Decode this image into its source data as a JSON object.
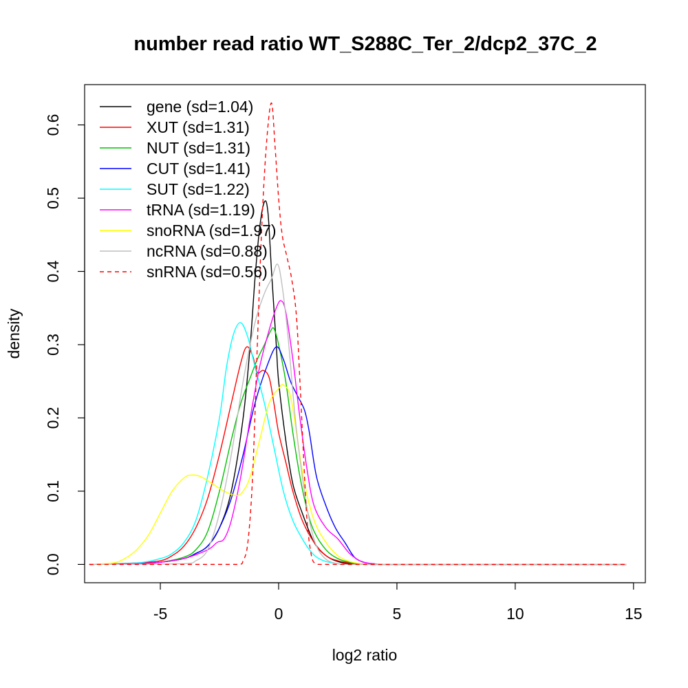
{
  "chart_data": {
    "type": "line",
    "title": "number read ratio WT_S288C_Ter_2/dcp2_37C_2",
    "xlabel": "log2 ratio",
    "ylabel": "density",
    "xlim": [
      -8.2,
      15.5
    ],
    "ylim": [
      -0.025,
      0.655
    ],
    "x_ticks": [
      -5,
      0,
      5,
      10,
      15
    ],
    "x_tick_labels": [
      "-5",
      "0",
      "5",
      "10",
      "15"
    ],
    "y_ticks": [
      0.0,
      0.1,
      0.2,
      0.3,
      0.4,
      0.5,
      0.6
    ],
    "y_tick_labels": [
      "0.0",
      "0.1",
      "0.2",
      "0.3",
      "0.4",
      "0.5",
      "0.6"
    ],
    "grid": false,
    "legend_position": "top-left",
    "series": [
      {
        "name": "gene",
        "legend": "gene (sd=1.04)",
        "color": "#000000",
        "dash": "solid",
        "points": [
          [
            -8,
            0
          ],
          [
            -6,
            0.001
          ],
          [
            -5,
            0.003
          ],
          [
            -4,
            0.008
          ],
          [
            -3.5,
            0.015
          ],
          [
            -3,
            0.025
          ],
          [
            -2.5,
            0.05
          ],
          [
            -2,
            0.1
          ],
          [
            -1.5,
            0.2
          ],
          [
            -1.2,
            0.3
          ],
          [
            -1,
            0.39
          ],
          [
            -0.8,
            0.46
          ],
          [
            -0.6,
            0.495
          ],
          [
            -0.45,
            0.48
          ],
          [
            -0.3,
            0.4
          ],
          [
            -0.1,
            0.3
          ],
          [
            0,
            0.25
          ],
          [
            0.3,
            0.17
          ],
          [
            0.6,
            0.11
          ],
          [
            1,
            0.07
          ],
          [
            1.5,
            0.03
          ],
          [
            2,
            0.012
          ],
          [
            2.5,
            0.004
          ],
          [
            3,
            0.001
          ],
          [
            4,
            0
          ],
          [
            14.7,
            0
          ]
        ]
      },
      {
        "name": "XUT",
        "legend": "XUT (sd=1.31)",
        "color": "#ff0000",
        "dash": "solid",
        "points": [
          [
            -8,
            0
          ],
          [
            -6,
            0.002
          ],
          [
            -5,
            0.005
          ],
          [
            -4.5,
            0.012
          ],
          [
            -4,
            0.025
          ],
          [
            -3.5,
            0.05
          ],
          [
            -3,
            0.09
          ],
          [
            -2.5,
            0.15
          ],
          [
            -2,
            0.22
          ],
          [
            -1.6,
            0.275
          ],
          [
            -1.35,
            0.297
          ],
          [
            -1.1,
            0.285
          ],
          [
            -0.9,
            0.262
          ],
          [
            -0.65,
            0.265
          ],
          [
            -0.4,
            0.255
          ],
          [
            -0.2,
            0.22
          ],
          [
            0,
            0.18
          ],
          [
            0.3,
            0.14
          ],
          [
            0.6,
            0.1
          ],
          [
            1,
            0.06
          ],
          [
            1.5,
            0.03
          ],
          [
            2,
            0.012
          ],
          [
            2.5,
            0.005
          ],
          [
            3,
            0.002
          ],
          [
            3.5,
            0.001
          ],
          [
            4,
            0
          ],
          [
            14.7,
            0
          ]
        ]
      },
      {
        "name": "NUT",
        "legend": "NUT (sd=1.31)",
        "color": "#00c000",
        "dash": "solid",
        "points": [
          [
            -8,
            0
          ],
          [
            -6,
            0.001
          ],
          [
            -5,
            0.003
          ],
          [
            -4,
            0.01
          ],
          [
            -3.5,
            0.02
          ],
          [
            -3,
            0.045
          ],
          [
            -2.5,
            0.1
          ],
          [
            -2,
            0.17
          ],
          [
            -1.6,
            0.22
          ],
          [
            -1.2,
            0.255
          ],
          [
            -0.9,
            0.28
          ],
          [
            -0.6,
            0.3
          ],
          [
            -0.35,
            0.318
          ],
          [
            -0.2,
            0.322
          ],
          [
            0,
            0.3
          ],
          [
            0.3,
            0.25
          ],
          [
            0.6,
            0.18
          ],
          [
            0.9,
            0.12
          ],
          [
            1.2,
            0.075
          ],
          [
            1.5,
            0.045
          ],
          [
            2,
            0.02
          ],
          [
            2.5,
            0.008
          ],
          [
            3,
            0.003
          ],
          [
            3.5,
            0.001
          ],
          [
            4,
            0
          ],
          [
            14.7,
            0
          ]
        ]
      },
      {
        "name": "CUT",
        "legend": "CUT (sd=1.41)",
        "color": "#0000ff",
        "dash": "solid",
        "points": [
          [
            -8,
            0
          ],
          [
            -6,
            0.001
          ],
          [
            -5,
            0.003
          ],
          [
            -4,
            0.008
          ],
          [
            -3.5,
            0.015
          ],
          [
            -3,
            0.025
          ],
          [
            -2.5,
            0.05
          ],
          [
            -2,
            0.09
          ],
          [
            -1.5,
            0.15
          ],
          [
            -1,
            0.22
          ],
          [
            -0.5,
            0.27
          ],
          [
            -0.1,
            0.297
          ],
          [
            0.2,
            0.28
          ],
          [
            0.5,
            0.25
          ],
          [
            0.8,
            0.23
          ],
          [
            1.1,
            0.21
          ],
          [
            1.3,
            0.18
          ],
          [
            1.6,
            0.12
          ],
          [
            2,
            0.08
          ],
          [
            2.4,
            0.05
          ],
          [
            2.8,
            0.03
          ],
          [
            3.2,
            0.01
          ],
          [
            3.6,
            0.003
          ],
          [
            4,
            0.001
          ],
          [
            4.5,
            0
          ],
          [
            14.7,
            0
          ]
        ]
      },
      {
        "name": "SUT",
        "legend": "SUT (sd=1.22)",
        "color": "#00ffff",
        "dash": "solid",
        "points": [
          [
            -8,
            0
          ],
          [
            -6,
            0.002
          ],
          [
            -5,
            0.008
          ],
          [
            -4.5,
            0.015
          ],
          [
            -4,
            0.03
          ],
          [
            -3.5,
            0.06
          ],
          [
            -3,
            0.12
          ],
          [
            -2.5,
            0.2
          ],
          [
            -2.2,
            0.27
          ],
          [
            -1.9,
            0.315
          ],
          [
            -1.6,
            0.33
          ],
          [
            -1.3,
            0.31
          ],
          [
            -1,
            0.27
          ],
          [
            -0.6,
            0.22
          ],
          [
            -0.2,
            0.16
          ],
          [
            0.2,
            0.1
          ],
          [
            0.6,
            0.06
          ],
          [
            1,
            0.035
          ],
          [
            1.3,
            0.02
          ],
          [
            1.6,
            0.01
          ],
          [
            2,
            0.004
          ],
          [
            2.5,
            0.001
          ],
          [
            3,
            0
          ],
          [
            14.7,
            0
          ]
        ]
      },
      {
        "name": "tRNA",
        "legend": "tRNA (sd=1.19)",
        "color": "#ff00ff",
        "dash": "solid",
        "points": [
          [
            -8,
            0
          ],
          [
            -6,
            0.001
          ],
          [
            -5,
            0.003
          ],
          [
            -4,
            0.008
          ],
          [
            -3,
            0.02
          ],
          [
            -2.6,
            0.03
          ],
          [
            -2.3,
            0.035
          ],
          [
            -2,
            0.06
          ],
          [
            -1.6,
            0.12
          ],
          [
            -1.2,
            0.2
          ],
          [
            -0.8,
            0.27
          ],
          [
            -0.4,
            0.32
          ],
          [
            -0.1,
            0.35
          ],
          [
            0.1,
            0.36
          ],
          [
            0.3,
            0.345
          ],
          [
            0.6,
            0.28
          ],
          [
            0.9,
            0.2
          ],
          [
            1.2,
            0.13
          ],
          [
            1.5,
            0.08
          ],
          [
            2,
            0.05
          ],
          [
            2.5,
            0.035
          ],
          [
            3,
            0.015
          ],
          [
            3.5,
            0.004
          ],
          [
            4,
            0.001
          ],
          [
            4.5,
            0
          ],
          [
            14.7,
            0
          ]
        ]
      },
      {
        "name": "snoRNA",
        "legend": "snoRNA (sd=1.97)",
        "color": "#ffff00",
        "dash": "solid",
        "points": [
          [
            -8,
            0
          ],
          [
            -7,
            0.002
          ],
          [
            -6.5,
            0.008
          ],
          [
            -6,
            0.02
          ],
          [
            -5.5,
            0.04
          ],
          [
            -5,
            0.07
          ],
          [
            -4.5,
            0.1
          ],
          [
            -4,
            0.118
          ],
          [
            -3.7,
            0.122
          ],
          [
            -3.3,
            0.12
          ],
          [
            -2.8,
            0.11
          ],
          [
            -2.3,
            0.1
          ],
          [
            -1.8,
            0.094
          ],
          [
            -1.5,
            0.1
          ],
          [
            -1.2,
            0.12
          ],
          [
            -0.8,
            0.17
          ],
          [
            -0.4,
            0.22
          ],
          [
            0,
            0.24
          ],
          [
            0.2,
            0.245
          ],
          [
            0.5,
            0.23
          ],
          [
            0.8,
            0.17
          ],
          [
            1.1,
            0.11
          ],
          [
            1.5,
            0.06
          ],
          [
            2,
            0.03
          ],
          [
            2.5,
            0.012
          ],
          [
            3,
            0.004
          ],
          [
            3.5,
            0.001
          ],
          [
            4,
            0
          ],
          [
            14.7,
            0
          ]
        ]
      },
      {
        "name": "ncRNA",
        "legend": "ncRNA (sd=0.88)",
        "color": "#bebebe",
        "dash": "solid",
        "points": [
          [
            -8,
            0
          ],
          [
            -4,
            0.001
          ],
          [
            -3.5,
            0.005
          ],
          [
            -3,
            0.02
          ],
          [
            -2.5,
            0.07
          ],
          [
            -2,
            0.15
          ],
          [
            -1.5,
            0.25
          ],
          [
            -1,
            0.33
          ],
          [
            -0.6,
            0.37
          ],
          [
            -0.3,
            0.39
          ],
          [
            -0.05,
            0.41
          ],
          [
            0.15,
            0.38
          ],
          [
            0.4,
            0.31
          ],
          [
            0.7,
            0.2
          ],
          [
            1,
            0.12
          ],
          [
            1.3,
            0.06
          ],
          [
            1.6,
            0.025
          ],
          [
            2,
            0.007
          ],
          [
            2.5,
            0.001
          ],
          [
            3,
            0
          ],
          [
            14.7,
            0
          ]
        ]
      },
      {
        "name": "snRNA",
        "legend": "snRNA (sd=0.56)",
        "color": "#ff0000",
        "dash": "dashed",
        "points": [
          [
            -8,
            0
          ],
          [
            -1.7,
            0
          ],
          [
            -1.5,
            0.005
          ],
          [
            -1.3,
            0.03
          ],
          [
            -1.1,
            0.12
          ],
          [
            -0.9,
            0.3
          ],
          [
            -0.7,
            0.47
          ],
          [
            -0.5,
            0.58
          ],
          [
            -0.3,
            0.63
          ],
          [
            -0.15,
            0.57
          ],
          [
            0,
            0.5
          ],
          [
            0.15,
            0.45
          ],
          [
            0.35,
            0.42
          ],
          [
            0.55,
            0.39
          ],
          [
            0.75,
            0.34
          ],
          [
            0.9,
            0.25
          ],
          [
            1.05,
            0.15
          ],
          [
            1.2,
            0.06
          ],
          [
            1.4,
            0.01
          ],
          [
            1.6,
            0.001
          ],
          [
            1.8,
            0
          ],
          [
            14.7,
            0
          ]
        ]
      }
    ]
  }
}
